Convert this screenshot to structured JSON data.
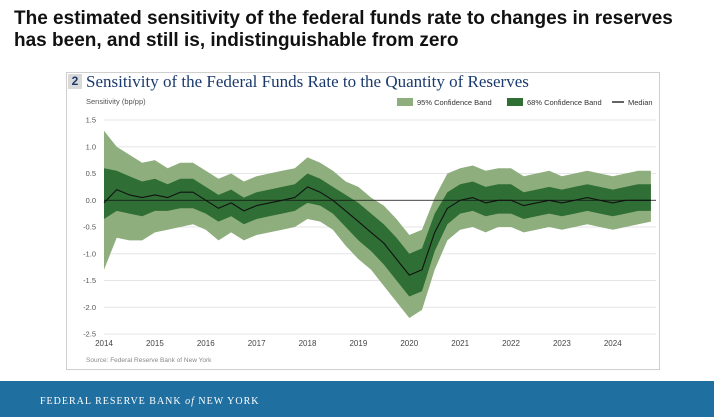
{
  "headline": "The estimated sensitivity of the federal funds rate to changes in reserves has been, and still is, indistinguishable from zero",
  "footer": {
    "org_pre": "FEDERAL RESERVE BANK",
    "org_of": "of",
    "org_post": "NEW YORK"
  },
  "chart_data": {
    "type": "area",
    "panel_number": "2",
    "title": "Sensitivity of the Federal Funds Rate to the Quantity of Reserves",
    "ylabel": "Sensitivity (bp/pp)",
    "xlabel": "",
    "source": "Source: Federal Reserve Bank of New York",
    "ylim": [
      -2.5,
      1.5
    ],
    "xlim": [
      2014.0,
      2024.85
    ],
    "yticks": [
      1.5,
      1.0,
      0.5,
      0.0,
      -0.5,
      -1.0,
      -1.5,
      -2.0,
      -2.5
    ],
    "ytick_labels": [
      "1.5",
      "1.0",
      "0.5",
      "0.0",
      "-0.5",
      "-1.0",
      "-1.5",
      "-2.0",
      "-2.5"
    ],
    "xticks": [
      2014,
      2015,
      2016,
      2017,
      2018,
      2019,
      2020,
      2021,
      2022,
      2023,
      2024
    ],
    "xtick_labels": [
      "2014",
      "2015",
      "2016",
      "2017",
      "2018",
      "2019",
      "2020",
      "2021",
      "2022",
      "2023",
      "2024"
    ],
    "grid": "horizontal",
    "legend_position": "top-right",
    "legend": [
      {
        "name": "95% Confidence Band",
        "type": "band",
        "color": "#8fae7e"
      },
      {
        "name": "68% Confidence Band",
        "type": "band",
        "color": "#2f6f35"
      },
      {
        "name": "Median",
        "type": "line",
        "color": "#111111"
      }
    ],
    "x": [
      2014.0,
      2014.25,
      2014.5,
      2014.75,
      2015.0,
      2015.25,
      2015.5,
      2015.75,
      2016.0,
      2016.25,
      2016.5,
      2016.75,
      2017.0,
      2017.25,
      2017.5,
      2017.75,
      2018.0,
      2018.25,
      2018.5,
      2018.75,
      2019.0,
      2019.25,
      2019.5,
      2019.75,
      2020.0,
      2020.25,
      2020.5,
      2020.75,
      2021.0,
      2021.25,
      2021.5,
      2021.75,
      2022.0,
      2022.25,
      2022.5,
      2022.75,
      2023.0,
      2023.25,
      2023.5,
      2023.75,
      2024.0,
      2024.25,
      2024.5,
      2024.75
    ],
    "series": [
      {
        "name": "Median",
        "values": [
          -0.05,
          0.2,
          0.1,
          0.05,
          0.1,
          0.05,
          0.15,
          0.15,
          0.0,
          -0.15,
          -0.05,
          -0.2,
          -0.1,
          -0.05,
          0.0,
          0.05,
          0.25,
          0.15,
          0.0,
          -0.2,
          -0.4,
          -0.6,
          -0.8,
          -1.1,
          -1.4,
          -1.3,
          -0.6,
          -0.15,
          0.0,
          0.05,
          -0.05,
          0.0,
          0.0,
          -0.1,
          -0.05,
          0.0,
          -0.05,
          0.0,
          0.05,
          0.0,
          -0.05,
          0.0,
          0.0,
          0.0
        ]
      },
      {
        "name": "68% Confidence Band",
        "lower": [
          -0.35,
          -0.2,
          -0.25,
          -0.3,
          -0.2,
          -0.2,
          -0.15,
          -0.15,
          -0.25,
          -0.4,
          -0.3,
          -0.45,
          -0.35,
          -0.3,
          -0.25,
          -0.2,
          -0.05,
          -0.1,
          -0.25,
          -0.5,
          -0.75,
          -0.95,
          -1.2,
          -1.5,
          -1.8,
          -1.7,
          -0.95,
          -0.45,
          -0.25,
          -0.2,
          -0.3,
          -0.25,
          -0.25,
          -0.35,
          -0.3,
          -0.25,
          -0.3,
          -0.25,
          -0.2,
          -0.25,
          -0.3,
          -0.25,
          -0.2,
          -0.2
        ],
        "upper": [
          0.6,
          0.55,
          0.45,
          0.35,
          0.4,
          0.3,
          0.4,
          0.4,
          0.25,
          0.1,
          0.2,
          0.05,
          0.15,
          0.2,
          0.25,
          0.3,
          0.5,
          0.4,
          0.25,
          0.1,
          -0.05,
          -0.25,
          -0.45,
          -0.7,
          -1.0,
          -0.9,
          -0.25,
          0.15,
          0.3,
          0.35,
          0.25,
          0.3,
          0.3,
          0.15,
          0.2,
          0.25,
          0.2,
          0.25,
          0.3,
          0.25,
          0.2,
          0.25,
          0.3,
          0.3
        ]
      },
      {
        "name": "95% Confidence Band",
        "lower": [
          -1.3,
          -0.7,
          -0.75,
          -0.75,
          -0.6,
          -0.55,
          -0.5,
          -0.45,
          -0.55,
          -0.75,
          -0.6,
          -0.75,
          -0.65,
          -0.6,
          -0.55,
          -0.5,
          -0.35,
          -0.4,
          -0.55,
          -0.85,
          -1.1,
          -1.3,
          -1.6,
          -1.9,
          -2.2,
          -2.05,
          -1.3,
          -0.75,
          -0.55,
          -0.5,
          -0.6,
          -0.5,
          -0.5,
          -0.6,
          -0.55,
          -0.5,
          -0.55,
          -0.5,
          -0.45,
          -0.5,
          -0.55,
          -0.5,
          -0.45,
          -0.4
        ],
        "upper": [
          1.3,
          1.0,
          0.85,
          0.7,
          0.75,
          0.6,
          0.7,
          0.7,
          0.55,
          0.4,
          0.5,
          0.35,
          0.45,
          0.5,
          0.55,
          0.6,
          0.8,
          0.7,
          0.55,
          0.35,
          0.25,
          0.05,
          -0.1,
          -0.35,
          -0.65,
          -0.55,
          0.05,
          0.5,
          0.6,
          0.65,
          0.55,
          0.6,
          0.6,
          0.45,
          0.5,
          0.55,
          0.45,
          0.5,
          0.55,
          0.5,
          0.45,
          0.5,
          0.55,
          0.55
        ]
      }
    ]
  }
}
